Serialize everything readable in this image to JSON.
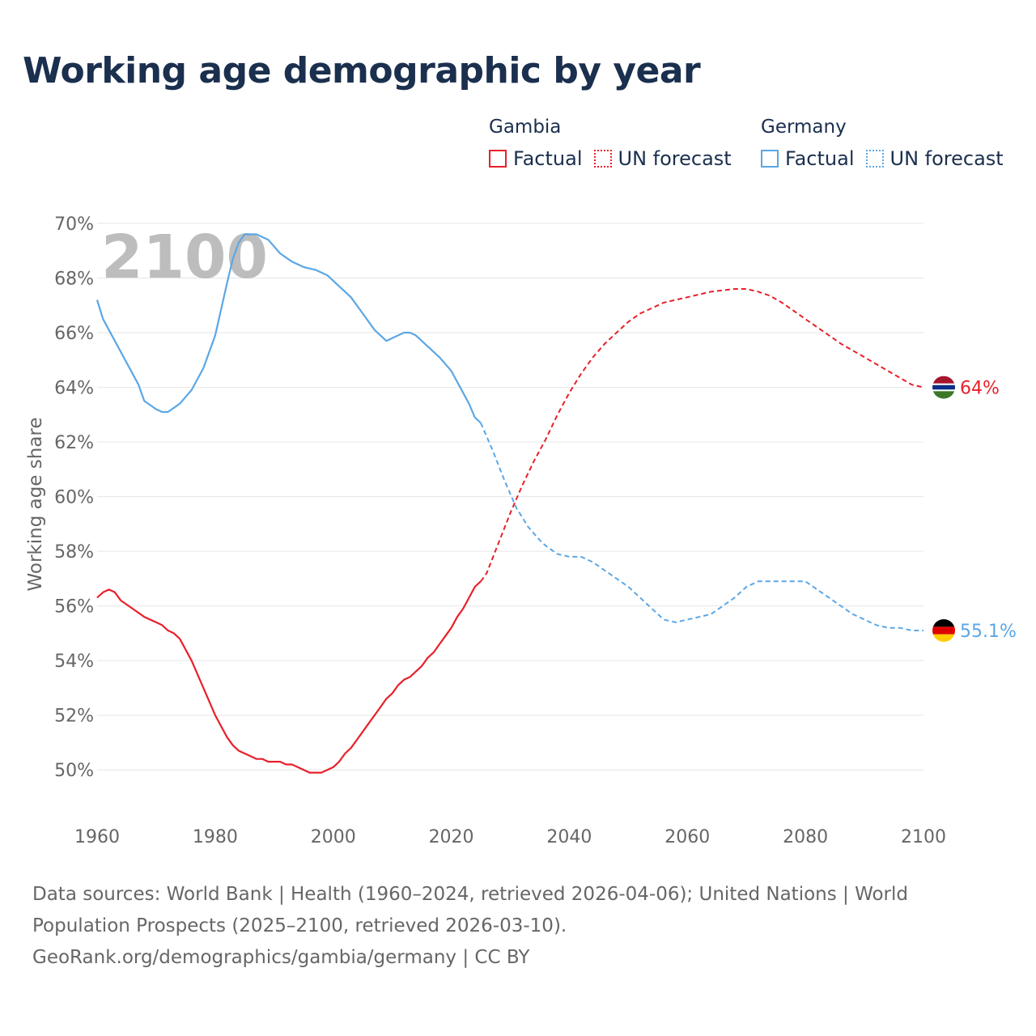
{
  "title": "Working age demographic by year",
  "legend": {
    "groups": [
      {
        "name": "Gambia",
        "factual_label": "Factual",
        "forecast_label": "UN forecast",
        "color": "#e8202a"
      },
      {
        "name": "Germany",
        "factual_label": "Factual",
        "forecast_label": "UN forecast",
        "color": "#5ba7e6"
      }
    ]
  },
  "footer": {
    "sources": "Data sources: World Bank | Health (1960–2024, retrieved 2026-04-06); United Nations | World Population Prospects (2025–2100, retrieved 2026-03-10).",
    "credit": "GeoRank.org/demographics/gambia/germany | CC BY"
  },
  "chart_data": {
    "type": "line",
    "title": "Working age demographic by year",
    "ylabel": "Working age share",
    "xlabel": "",
    "year_watermark": "2100",
    "xlim": [
      1960,
      2100
    ],
    "ylim": [
      48.2,
      70
    ],
    "x_ticks": [
      "1960",
      "1980",
      "2000",
      "2020",
      "2040",
      "2060",
      "2080",
      "2100"
    ],
    "x_tick_values": [
      1960,
      1980,
      2000,
      2020,
      2040,
      2060,
      2080,
      2100
    ],
    "y_ticks": [
      "70%",
      "68%",
      "66%",
      "64%",
      "62%",
      "60%",
      "58%",
      "56%",
      "54%",
      "52%",
      "50%"
    ],
    "y_tick_values": [
      70,
      68,
      66,
      64,
      62,
      60,
      58,
      56,
      54,
      52,
      50
    ],
    "forecast_start": 2025,
    "series": [
      {
        "name": "Gambia",
        "color": "#e8202a",
        "end_label": "64%",
        "flag": "gambia",
        "x": [
          1960,
          1961,
          1962,
          1963,
          1964,
          1966,
          1968,
          1970,
          1971,
          1972,
          1973,
          1974,
          1976,
          1978,
          1980,
          1982,
          1983,
          1984,
          1986,
          1987,
          1988,
          1989,
          1990,
          1991,
          1992,
          1993,
          1994,
          1995,
          1996,
          1998,
          2000,
          2001,
          2002,
          2003,
          2004,
          2006,
          2008,
          2009,
          2010,
          2011,
          2012,
          2013,
          2014,
          2015,
          2016,
          2017,
          2018,
          2019,
          2020,
          2021,
          2022,
          2023,
          2024,
          2025,
          2026,
          2028,
          2030,
          2032,
          2034,
          2036,
          2038,
          2040,
          2042,
          2044,
          2046,
          2048,
          2050,
          2052,
          2054,
          2056,
          2058,
          2060,
          2062,
          2064,
          2066,
          2068,
          2070,
          2072,
          2074,
          2076,
          2078,
          2080,
          2082,
          2084,
          2086,
          2088,
          2090,
          2092,
          2094,
          2096,
          2098,
          2100
        ],
        "y": [
          56.3,
          56.5,
          56.6,
          56.5,
          56.2,
          55.9,
          55.6,
          55.4,
          55.3,
          55.1,
          55.0,
          54.8,
          54.0,
          53.0,
          52.0,
          51.2,
          50.9,
          50.7,
          50.5,
          50.4,
          50.4,
          50.3,
          50.3,
          50.3,
          50.2,
          50.2,
          50.1,
          50.0,
          49.9,
          49.9,
          50.1,
          50.3,
          50.6,
          50.8,
          51.1,
          51.7,
          52.3,
          52.6,
          52.8,
          53.1,
          53.3,
          53.4,
          53.6,
          53.8,
          54.1,
          54.3,
          54.6,
          54.9,
          55.2,
          55.6,
          55.9,
          56.3,
          56.7,
          56.9,
          57.2,
          58.3,
          59.4,
          60.4,
          61.3,
          62.1,
          63.0,
          63.8,
          64.5,
          65.1,
          65.6,
          66.0,
          66.4,
          66.7,
          66.9,
          67.1,
          67.2,
          67.3,
          67.4,
          67.5,
          67.55,
          67.6,
          67.6,
          67.5,
          67.35,
          67.1,
          66.8,
          66.5,
          66.2,
          65.9,
          65.6,
          65.35,
          65.1,
          64.85,
          64.6,
          64.35,
          64.1,
          64.0
        ]
      },
      {
        "name": "Germany",
        "color": "#5ba7e6",
        "end_label": "55.1%",
        "flag": "germany",
        "x": [
          1960,
          1961,
          1963,
          1965,
          1967,
          1968,
          1970,
          1971,
          1972,
          1974,
          1976,
          1978,
          1980,
          1982,
          1983,
          1984,
          1985,
          1986,
          1987,
          1989,
          1991,
          1993,
          1995,
          1997,
          1999,
          2001,
          2003,
          2005,
          2006,
          2007,
          2008,
          2009,
          2010,
          2011,
          2012,
          2013,
          2014,
          2016,
          2018,
          2020,
          2022,
          2023,
          2024,
          2025,
          2027,
          2029,
          2031,
          2033,
          2035,
          2036,
          2038,
          2040,
          2042,
          2044,
          2046,
          2048,
          2050,
          2052,
          2054,
          2056,
          2058,
          2060,
          2062,
          2064,
          2066,
          2068,
          2070,
          2072,
          2074,
          2076,
          2078,
          2080,
          2082,
          2084,
          2086,
          2088,
          2090,
          2092,
          2094,
          2096,
          2098,
          2100
        ],
        "y": [
          67.2,
          66.5,
          65.7,
          64.9,
          64.1,
          63.5,
          63.2,
          63.1,
          63.1,
          63.4,
          63.9,
          64.7,
          65.9,
          67.8,
          68.7,
          69.3,
          69.6,
          69.6,
          69.6,
          69.4,
          68.9,
          68.6,
          68.4,
          68.3,
          68.1,
          67.7,
          67.3,
          66.7,
          66.4,
          66.1,
          65.9,
          65.7,
          65.8,
          65.9,
          66.0,
          66.0,
          65.9,
          65.5,
          65.1,
          64.6,
          63.8,
          63.4,
          62.9,
          62.7,
          61.7,
          60.6,
          59.6,
          58.9,
          58.4,
          58.2,
          57.9,
          57.8,
          57.8,
          57.6,
          57.3,
          57.0,
          56.7,
          56.3,
          55.9,
          55.5,
          55.4,
          55.5,
          55.6,
          55.7,
          56.0,
          56.3,
          56.7,
          56.9,
          56.9,
          56.9,
          56.9,
          56.9,
          56.6,
          56.3,
          56.0,
          55.7,
          55.5,
          55.3,
          55.2,
          55.2,
          55.1,
          55.1
        ]
      }
    ]
  }
}
